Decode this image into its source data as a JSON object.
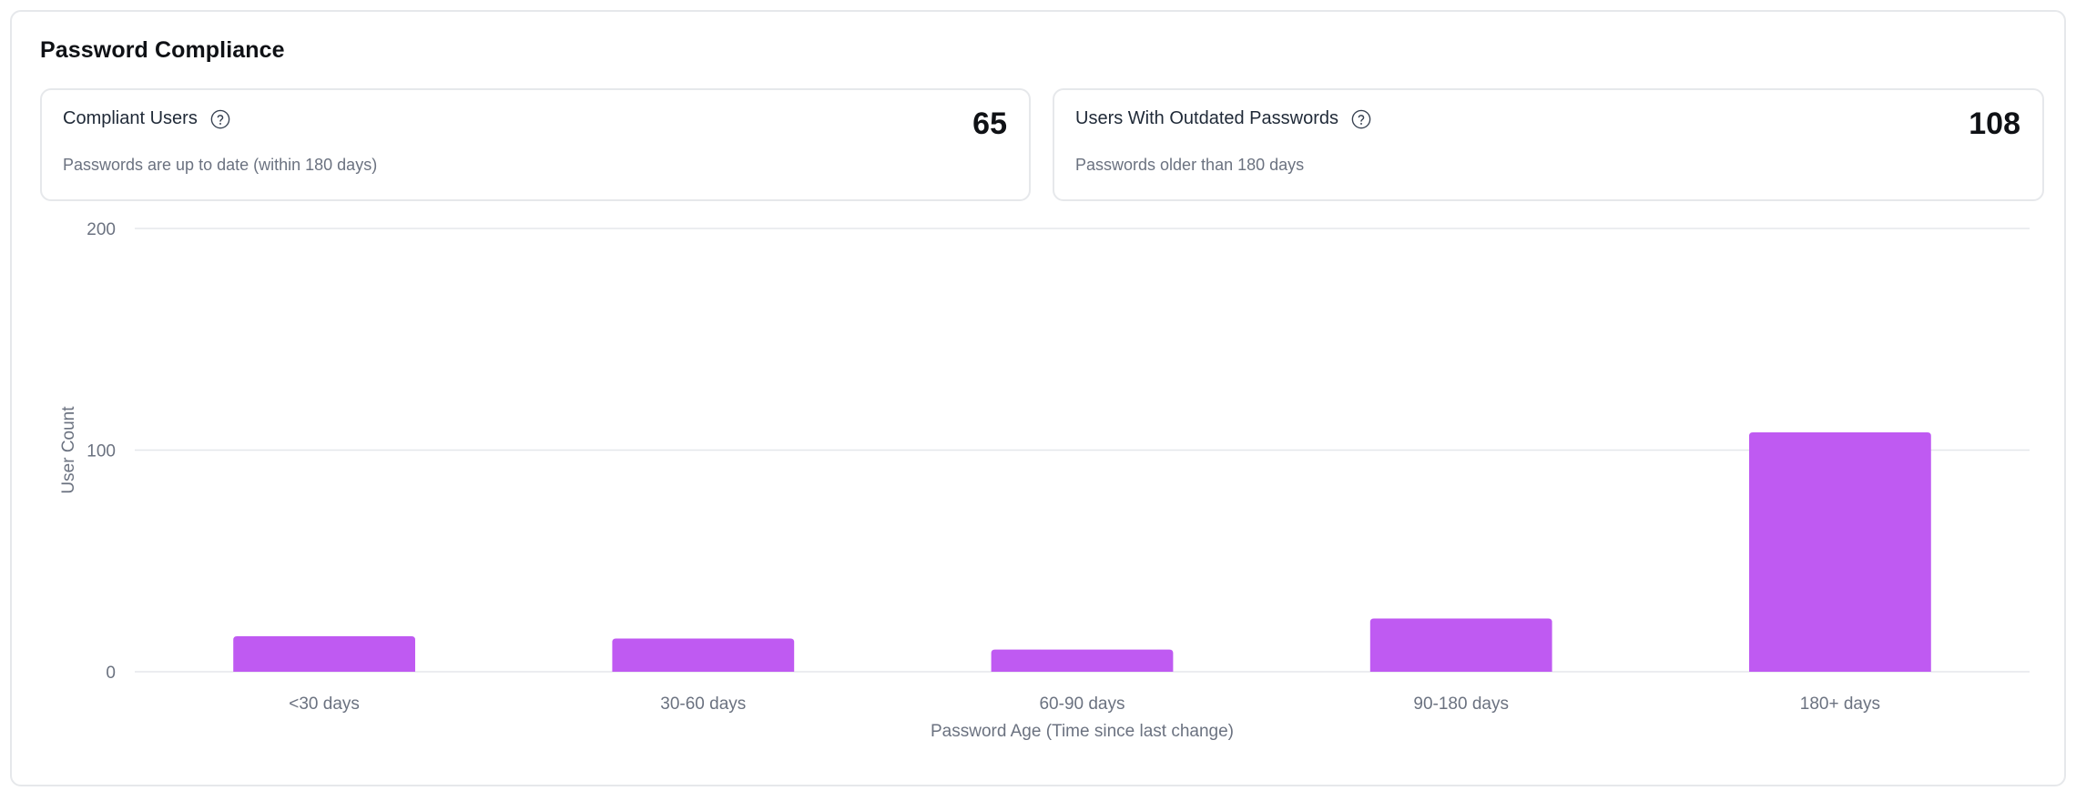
{
  "card": {
    "title": "Password Compliance"
  },
  "stats": [
    {
      "label": "Compliant Users",
      "value": "65",
      "description": "Passwords are up to date (within 180 days)",
      "icon": "help-circle-icon"
    },
    {
      "label": "Users With Outdated Passwords",
      "value": "108",
      "description": "Passwords older than 180 days",
      "icon": "help-circle-icon"
    }
  ],
  "colors": {
    "bar": "#bf5af2",
    "grid": "#e5e7eb",
    "axis_text": "#6b7280",
    "border": "#e6e8eb"
  },
  "chart_data": {
    "type": "bar",
    "title": "",
    "xlabel": "Password Age (Time since last change)",
    "ylabel": "User Count",
    "categories": [
      "<30 days",
      "30-60 days",
      "60-90 days",
      "90-180 days",
      "180+ days"
    ],
    "values": [
      16,
      15,
      10,
      24,
      108
    ],
    "yticks": [
      0,
      100,
      200
    ],
    "ylim": [
      0,
      200
    ],
    "grid": true,
    "legend": "none"
  }
}
